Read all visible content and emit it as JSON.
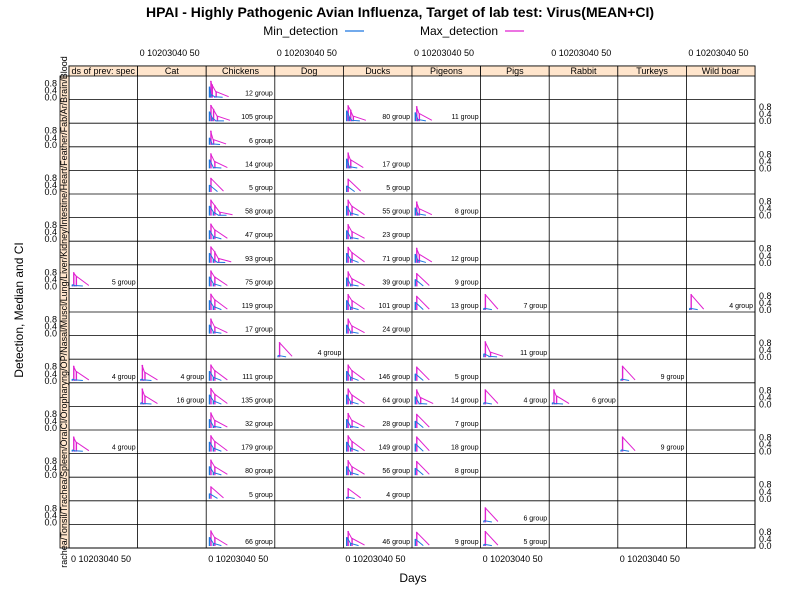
{
  "chart_data": {
    "type": "line",
    "title": "HPAI - Highly Pathogenic Avian Influenza, Target of lab test: Virus(MEAN+CI)",
    "xlabel": "Days",
    "ylabel": "Detection, Median and CI",
    "xlim": [
      0,
      50
    ],
    "ylim": [
      0,
      1
    ],
    "x_ticks": [
      0,
      10,
      20,
      30,
      40,
      50
    ],
    "x_tick_label": "0  10203040 50",
    "y_ticks": [
      "0.0",
      "0.4",
      "0.8"
    ],
    "legend": {
      "placement": "top",
      "entries": [
        {
          "name": "Min_detection",
          "color": "#1f77e0"
        },
        {
          "name": "Max_detection",
          "color": "#e020d0"
        }
      ]
    },
    "series_colors": {
      "min": "#1f77e0",
      "max": "#e020d0"
    },
    "species": [
      "ds of prev: spec",
      "Cat",
      "Chickens",
      "Dog",
      "Ducks",
      "Pigeons",
      "Pigs",
      "Rabbit",
      "Turkeys",
      "Wild boar"
    ],
    "samples": [
      "Blood",
      "Brain",
      "Ar",
      "Fab",
      "Feather",
      "Heart",
      "Intestine",
      "Kidney",
      "Liver",
      "Lung",
      "Musc",
      "Nasal",
      "OP",
      "Orop",
      "Cloacal",
      "Spleen",
      "Trachea",
      "Tonsil",
      "Zpools",
      "Organs"
    ],
    "strip_labels_left": "rachea/Tonsil/Trachea/Spleen/OralCl/Oropharyng/OP/Nasal/Muscl/Lung/Liver/Kidney/Intestine/Heart/Feather/Fab/Ar/Brain/Blood",
    "panels": [
      {
        "row": 0,
        "col": 2,
        "label": "12 group",
        "detections": [
          {
            "day": 1,
            "min": 0.62,
            "max": 0.95
          },
          {
            "day": 2,
            "min": 0.18,
            "max": 0.75
          },
          {
            "day": 5,
            "min": 0.05,
            "max": 0.35
          }
        ]
      },
      {
        "row": 1,
        "col": 2,
        "label": "105 group",
        "detections": [
          {
            "day": 1,
            "min": 0.55,
            "max": 0.92
          },
          {
            "day": 3,
            "min": 0.2,
            "max": 0.7
          },
          {
            "day": 6,
            "min": 0.02,
            "max": 0.3
          }
        ]
      },
      {
        "row": 1,
        "col": 4,
        "label": "80 group",
        "detections": [
          {
            "day": 1,
            "min": 0.6,
            "max": 0.9
          },
          {
            "day": 3,
            "min": 0.25,
            "max": 0.65
          },
          {
            "day": 5,
            "min": 0.05,
            "max": 0.3
          }
        ]
      },
      {
        "row": 1,
        "col": 5,
        "label": "11 group",
        "detections": [
          {
            "day": 1,
            "min": 0.5,
            "max": 0.85
          },
          {
            "day": 3,
            "min": 0.1,
            "max": 0.45
          }
        ]
      },
      {
        "row": 2,
        "col": 2,
        "label": "6 group",
        "detections": [
          {
            "day": 1,
            "min": 0.4,
            "max": 0.8
          },
          {
            "day": 3,
            "min": 0.05,
            "max": 0.3
          }
        ]
      },
      {
        "row": 3,
        "col": 2,
        "label": "14 group",
        "detections": [
          {
            "day": 1,
            "min": 0.5,
            "max": 0.85
          },
          {
            "day": 4,
            "min": 0.05,
            "max": 0.4
          }
        ]
      },
      {
        "row": 3,
        "col": 4,
        "label": "17 group",
        "detections": [
          {
            "day": 1,
            "min": 0.55,
            "max": 0.9
          },
          {
            "day": 3,
            "min": 0.1,
            "max": 0.5
          }
        ]
      },
      {
        "row": 4,
        "col": 2,
        "label": "5 group",
        "detections": [
          {
            "day": 1,
            "min": 0.4,
            "max": 0.8
          }
        ]
      },
      {
        "row": 4,
        "col": 4,
        "label": "5 group",
        "detections": [
          {
            "day": 1,
            "min": 0.35,
            "max": 0.75
          }
        ]
      },
      {
        "row": 5,
        "col": 2,
        "label": "58 group",
        "detections": [
          {
            "day": 1,
            "min": 0.55,
            "max": 0.9
          },
          {
            "day": 4,
            "min": 0.2,
            "max": 0.6
          },
          {
            "day": 8,
            "min": 0.02,
            "max": 0.2
          }
        ]
      },
      {
        "row": 5,
        "col": 4,
        "label": "55 group",
        "detections": [
          {
            "day": 1,
            "min": 0.55,
            "max": 0.9
          },
          {
            "day": 4,
            "min": 0.15,
            "max": 0.55
          }
        ]
      },
      {
        "row": 5,
        "col": 5,
        "label": "8 group",
        "detections": [
          {
            "day": 1,
            "min": 0.45,
            "max": 0.8
          },
          {
            "day": 3,
            "min": 0.1,
            "max": 0.4
          }
        ]
      },
      {
        "row": 6,
        "col": 2,
        "label": "47 group",
        "detections": [
          {
            "day": 1,
            "min": 0.5,
            "max": 0.88
          },
          {
            "day": 4,
            "min": 0.15,
            "max": 0.55
          }
        ]
      },
      {
        "row": 6,
        "col": 4,
        "label": "23 group",
        "detections": [
          {
            "day": 1,
            "min": 0.5,
            "max": 0.85
          },
          {
            "day": 4,
            "min": 0.1,
            "max": 0.45
          }
        ]
      },
      {
        "row": 7,
        "col": 2,
        "label": "93 group",
        "detections": [
          {
            "day": 1,
            "min": 0.55,
            "max": 0.92
          },
          {
            "day": 4,
            "min": 0.2,
            "max": 0.65
          },
          {
            "day": 7,
            "min": 0.03,
            "max": 0.25
          }
        ]
      },
      {
        "row": 7,
        "col": 4,
        "label": "71 group",
        "detections": [
          {
            "day": 1,
            "min": 0.55,
            "max": 0.9
          },
          {
            "day": 4,
            "min": 0.2,
            "max": 0.6
          }
        ]
      },
      {
        "row": 7,
        "col": 5,
        "label": "12 group",
        "detections": [
          {
            "day": 1,
            "min": 0.5,
            "max": 0.85
          },
          {
            "day": 3,
            "min": 0.15,
            "max": 0.5
          }
        ]
      },
      {
        "row": 8,
        "col": 0,
        "label": "5 group",
        "detections": [
          {
            "day": 1,
            "min": 0.1,
            "max": 0.8
          },
          {
            "day": 3,
            "min": 0.05,
            "max": 0.6
          }
        ]
      },
      {
        "row": 8,
        "col": 2,
        "label": "75 group",
        "detections": [
          {
            "day": 1,
            "min": 0.55,
            "max": 0.9
          },
          {
            "day": 4,
            "min": 0.15,
            "max": 0.55
          }
        ]
      },
      {
        "row": 8,
        "col": 4,
        "label": "39 group",
        "detections": [
          {
            "day": 1,
            "min": 0.5,
            "max": 0.85
          },
          {
            "day": 4,
            "min": 0.1,
            "max": 0.45
          }
        ]
      },
      {
        "row": 8,
        "col": 5,
        "label": "9 group",
        "detections": [
          {
            "day": 1,
            "min": 0.4,
            "max": 0.75
          }
        ]
      },
      {
        "row": 9,
        "col": 2,
        "label": "119 group",
        "detections": [
          {
            "day": 1,
            "min": 0.55,
            "max": 0.92
          },
          {
            "day": 4,
            "min": 0.2,
            "max": 0.6
          }
        ]
      },
      {
        "row": 9,
        "col": 4,
        "label": "101 group",
        "detections": [
          {
            "day": 1,
            "min": 0.55,
            "max": 0.9
          },
          {
            "day": 4,
            "min": 0.15,
            "max": 0.55
          }
        ]
      },
      {
        "row": 9,
        "col": 5,
        "label": "13 group",
        "detections": [
          {
            "day": 1,
            "min": 0.45,
            "max": 0.8
          }
        ]
      },
      {
        "row": 9,
        "col": 6,
        "label": "7 group",
        "detections": [
          {
            "day": 1,
            "min": 0.1,
            "max": 0.9
          }
        ]
      },
      {
        "row": 9,
        "col": 9,
        "label": "4 group",
        "detections": [
          {
            "day": 1,
            "min": 0.1,
            "max": 0.9
          }
        ]
      },
      {
        "row": 10,
        "col": 2,
        "label": "17 group",
        "detections": [
          {
            "day": 1,
            "min": 0.5,
            "max": 0.85
          },
          {
            "day": 4,
            "min": 0.1,
            "max": 0.4
          }
        ]
      },
      {
        "row": 10,
        "col": 4,
        "label": "24 group",
        "detections": [
          {
            "day": 1,
            "min": 0.5,
            "max": 0.85
          },
          {
            "day": 4,
            "min": 0.1,
            "max": 0.45
          }
        ]
      },
      {
        "row": 11,
        "col": 3,
        "label": "4 group",
        "detections": [
          {
            "day": 1,
            "min": 0.1,
            "max": 0.85
          }
        ]
      },
      {
        "row": 11,
        "col": 6,
        "label": "11 group",
        "detections": [
          {
            "day": 1,
            "min": 0.2,
            "max": 0.9
          },
          {
            "day": 5,
            "min": 0.05,
            "max": 0.3
          }
        ]
      },
      {
        "row": 12,
        "col": 0,
        "label": "4 group",
        "detections": [
          {
            "day": 1,
            "min": 0.1,
            "max": 0.85
          },
          {
            "day": 3,
            "min": 0.05,
            "max": 0.55
          }
        ]
      },
      {
        "row": 12,
        "col": 1,
        "label": "4 group",
        "detections": [
          {
            "day": 1,
            "min": 0.1,
            "max": 0.9
          },
          {
            "day": 3,
            "min": 0.05,
            "max": 0.5
          }
        ]
      },
      {
        "row": 12,
        "col": 2,
        "label": "111 group",
        "detections": [
          {
            "day": 1,
            "min": 0.55,
            "max": 0.92
          },
          {
            "day": 4,
            "min": 0.2,
            "max": 0.6
          }
        ]
      },
      {
        "row": 12,
        "col": 4,
        "label": "146 group",
        "detections": [
          {
            "day": 1,
            "min": 0.55,
            "max": 0.92
          },
          {
            "day": 4,
            "min": 0.2,
            "max": 0.6
          }
        ]
      },
      {
        "row": 12,
        "col": 5,
        "label": "5 group",
        "detections": [
          {
            "day": 1,
            "min": 0.4,
            "max": 0.8
          }
        ]
      },
      {
        "row": 12,
        "col": 8,
        "label": "9 group",
        "detections": [
          {
            "day": 1,
            "min": 0.1,
            "max": 0.85
          }
        ]
      },
      {
        "row": 13,
        "col": 1,
        "label": "16 group",
        "detections": [
          {
            "day": 1,
            "min": 0.1,
            "max": 0.9
          },
          {
            "day": 3,
            "min": 0.05,
            "max": 0.5
          }
        ]
      },
      {
        "row": 13,
        "col": 2,
        "label": "135 group",
        "detections": [
          {
            "day": 1,
            "min": 0.55,
            "max": 0.92
          },
          {
            "day": 4,
            "min": 0.2,
            "max": 0.6
          }
        ]
      },
      {
        "row": 13,
        "col": 4,
        "label": "64 group",
        "detections": [
          {
            "day": 1,
            "min": 0.55,
            "max": 0.9
          },
          {
            "day": 4,
            "min": 0.15,
            "max": 0.55
          }
        ]
      },
      {
        "row": 13,
        "col": 5,
        "label": "14 group",
        "detections": [
          {
            "day": 1,
            "min": 0.45,
            "max": 0.85
          },
          {
            "day": 4,
            "min": 0.05,
            "max": 0.4
          }
        ]
      },
      {
        "row": 13,
        "col": 6,
        "label": "4 group",
        "detections": [
          {
            "day": 1,
            "min": 0.1,
            "max": 0.85
          }
        ]
      },
      {
        "row": 13,
        "col": 7,
        "label": "6 group",
        "detections": [
          {
            "day": 1,
            "min": 0.1,
            "max": 0.85
          },
          {
            "day": 3,
            "min": 0.05,
            "max": 0.5
          }
        ]
      },
      {
        "row": 14,
        "col": 2,
        "label": "32 group",
        "detections": [
          {
            "day": 1,
            "min": 0.5,
            "max": 0.88
          },
          {
            "day": 4,
            "min": 0.1,
            "max": 0.45
          }
        ]
      },
      {
        "row": 14,
        "col": 4,
        "label": "28 group",
        "detections": [
          {
            "day": 1,
            "min": 0.5,
            "max": 0.85
          },
          {
            "day": 4,
            "min": 0.1,
            "max": 0.45
          }
        ]
      },
      {
        "row": 14,
        "col": 5,
        "label": "7 group",
        "detections": [
          {
            "day": 1,
            "min": 0.4,
            "max": 0.8
          }
        ]
      },
      {
        "row": 15,
        "col": 0,
        "label": "4 group",
        "detections": [
          {
            "day": 1,
            "min": 0.1,
            "max": 0.85
          },
          {
            "day": 3,
            "min": 0.05,
            "max": 0.55
          }
        ]
      },
      {
        "row": 15,
        "col": 2,
        "label": "179 group",
        "detections": [
          {
            "day": 1,
            "min": 0.55,
            "max": 0.92
          },
          {
            "day": 4,
            "min": 0.2,
            "max": 0.6
          }
        ]
      },
      {
        "row": 15,
        "col": 4,
        "label": "149 group",
        "detections": [
          {
            "day": 1,
            "min": 0.55,
            "max": 0.92
          },
          {
            "day": 4,
            "min": 0.2,
            "max": 0.6
          }
        ]
      },
      {
        "row": 15,
        "col": 5,
        "label": "18 group",
        "detections": [
          {
            "day": 1,
            "min": 0.45,
            "max": 0.85
          }
        ]
      },
      {
        "row": 15,
        "col": 8,
        "label": "9 group",
        "detections": [
          {
            "day": 1,
            "min": 0.1,
            "max": 0.85
          }
        ]
      },
      {
        "row": 16,
        "col": 2,
        "label": "80 group",
        "detections": [
          {
            "day": 1,
            "min": 0.5,
            "max": 0.88
          },
          {
            "day": 4,
            "min": 0.15,
            "max": 0.5
          }
        ]
      },
      {
        "row": 16,
        "col": 4,
        "label": "56 group",
        "detections": [
          {
            "day": 1,
            "min": 0.5,
            "max": 0.85
          },
          {
            "day": 4,
            "min": 0.15,
            "max": 0.5
          }
        ]
      },
      {
        "row": 16,
        "col": 5,
        "label": "8 group",
        "detections": [
          {
            "day": 1,
            "min": 0.4,
            "max": 0.8
          }
        ]
      },
      {
        "row": 17,
        "col": 2,
        "label": "5 group",
        "detections": [
          {
            "day": 1,
            "min": 0.3,
            "max": 0.7
          }
        ]
      },
      {
        "row": 17,
        "col": 4,
        "label": "4 group",
        "detections": [
          {
            "day": 1,
            "min": 0.1,
            "max": 0.6
          }
        ]
      },
      {
        "row": 18,
        "col": 6,
        "label": "6 group",
        "detections": [
          {
            "day": 1,
            "min": 0.1,
            "max": 0.85
          }
        ]
      },
      {
        "row": 19,
        "col": 2,
        "label": "66 group",
        "detections": [
          {
            "day": 1,
            "min": 0.5,
            "max": 0.88
          },
          {
            "day": 4,
            "min": 0.15,
            "max": 0.5
          }
        ]
      },
      {
        "row": 19,
        "col": 4,
        "label": "46 group",
        "detections": [
          {
            "day": 1,
            "min": 0.5,
            "max": 0.85
          },
          {
            "day": 4,
            "min": 0.15,
            "max": 0.45
          }
        ]
      },
      {
        "row": 19,
        "col": 5,
        "label": "9 group",
        "detections": [
          {
            "day": 1,
            "min": 0.4,
            "max": 0.8
          }
        ]
      },
      {
        "row": 19,
        "col": 6,
        "label": "5 group",
        "detections": [
          {
            "day": 1,
            "min": 0.1,
            "max": 0.85
          }
        ]
      }
    ]
  }
}
